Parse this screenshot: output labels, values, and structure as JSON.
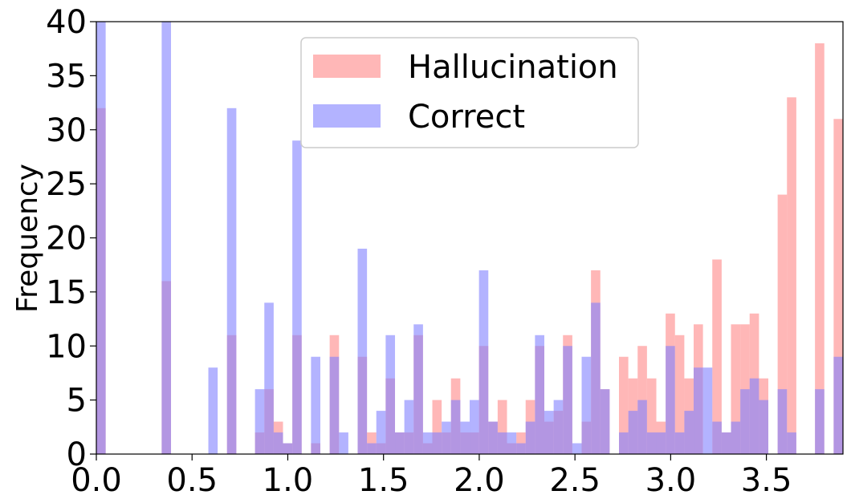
{
  "chart_data": {
    "type": "bar",
    "title": "",
    "xlabel": "",
    "ylabel": "Frequency",
    "xlim": [
      0.0,
      3.9
    ],
    "ylim": [
      0,
      40
    ],
    "grid": false,
    "legend_placement": "top-center",
    "x_ticks": [
      "0.0",
      "0.5",
      "1.0",
      "1.5",
      "2.0",
      "2.5",
      "3.0",
      "3.5"
    ],
    "y_ticks": [
      "0",
      "5",
      "10",
      "15",
      "20",
      "25",
      "30",
      "35",
      "40"
    ],
    "bin_width": 0.04875,
    "bin_starts": [
      0.0,
      0.04875,
      0.0975,
      0.14625,
      0.195,
      0.24375,
      0.2925,
      0.34125,
      0.39,
      0.43875,
      0.4875,
      0.53625,
      0.585,
      0.63375,
      0.6825,
      0.73125,
      0.78,
      0.82875,
      0.8775,
      0.92625,
      0.975,
      1.02375,
      1.0725,
      1.12125,
      1.17,
      1.21875,
      1.2675,
      1.31625,
      1.365,
      1.41375,
      1.4625,
      1.51125,
      1.56,
      1.60875,
      1.6575,
      1.70625,
      1.755,
      1.80375,
      1.8525,
      1.90125,
      1.95,
      1.99875,
      2.0475,
      2.09625,
      2.145,
      2.19375,
      2.2425,
      2.29125,
      2.34,
      2.38875,
      2.4375,
      2.48625,
      2.535,
      2.58375,
      2.6325,
      2.68125,
      2.73,
      2.77875,
      2.8275,
      2.87625,
      2.925,
      2.97375,
      3.0225,
      3.07125,
      3.12,
      3.16875,
      3.2175,
      3.26625,
      3.315,
      3.36375,
      3.4125,
      3.46125,
      3.51,
      3.55875,
      3.6075,
      3.65625,
      3.705,
      3.75375,
      3.8025,
      3.85125
    ],
    "series": [
      {
        "name": "Hallucination",
        "color": "#ff9999",
        "values": [
          32,
          0,
          0,
          0,
          0,
          0,
          0,
          16,
          0,
          0,
          0,
          0,
          0,
          0,
          11,
          0,
          0,
          2,
          6,
          3,
          1,
          11,
          0,
          1,
          0,
          11,
          0,
          0,
          9,
          2,
          1,
          7,
          2,
          2,
          11,
          1,
          5,
          2,
          7,
          2,
          2,
          10,
          3,
          5,
          1,
          2,
          5,
          10,
          3,
          4,
          11,
          0,
          3,
          17,
          6,
          0,
          9,
          7,
          10,
          7,
          3,
          13,
          11,
          7,
          12,
          0,
          18,
          2,
          12,
          12,
          13,
          7,
          0,
          24,
          33,
          0,
          0,
          38,
          0,
          31
        ]
      },
      {
        "name": "Correct",
        "color": "#8080ff",
        "values": [
          40,
          0,
          0,
          0,
          0,
          0,
          0,
          40,
          0,
          0,
          0,
          0,
          8,
          0,
          32,
          0,
          0,
          6,
          14,
          2,
          1,
          29,
          0,
          9,
          0,
          9,
          2,
          0,
          19,
          1,
          4,
          11,
          2,
          5,
          12,
          2,
          2,
          3,
          5,
          3,
          5,
          17,
          3,
          2,
          2,
          1,
          3,
          11,
          4,
          5,
          10,
          1,
          9,
          14,
          6,
          0,
          2,
          4,
          5,
          2,
          2,
          10,
          2,
          4,
          8,
          8,
          3,
          2,
          3,
          6,
          7,
          5,
          0,
          6,
          2,
          0,
          0,
          6,
          0,
          9
        ]
      }
    ]
  }
}
